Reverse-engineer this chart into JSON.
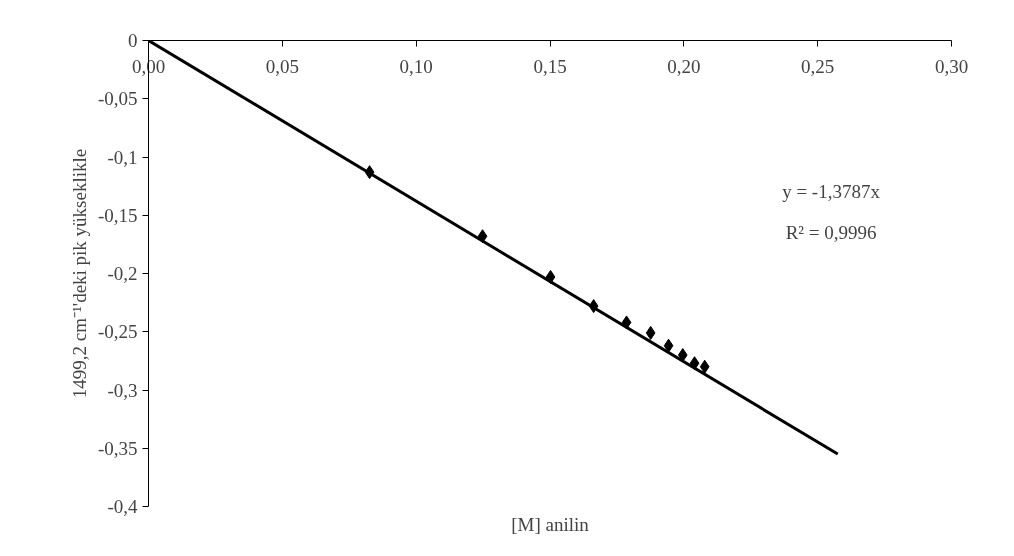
{
  "chart_data": {
    "type": "scatter",
    "xlabel": "[M] anilin",
    "ylabel": "1499,2 cm⁻¹'deki pik yükseklikle",
    "series": [
      {
        "color": "#000000",
        "marker": "diamond",
        "x": [
          0.0826,
          0.1248,
          0.1502,
          0.1663,
          0.1786,
          0.1876,
          0.1943,
          0.1996,
          0.204,
          0.2078
        ],
        "values": [
          -0.113,
          -0.168,
          -0.203,
          -0.228,
          -0.242,
          -0.251,
          -0.262,
          -0.27,
          -0.277,
          -0.28
        ]
      },
      {
        "type": "line",
        "color": "#000000",
        "marker": "none",
        "x": [
          0,
          0.2575
        ],
        "values": [
          0,
          -0.355
        ]
      }
    ],
    "xlim": [
      0,
      0.3
    ],
    "ylim": [
      -0.4,
      0
    ],
    "xticks": [
      {
        "value": 0,
        "label": "0,00"
      },
      {
        "value": 0.05,
        "label": "0,05"
      },
      {
        "value": 0.1,
        "label": "0,10"
      },
      {
        "value": 0.15,
        "label": "0,15"
      },
      {
        "value": 0.2,
        "label": "0,20"
      },
      {
        "value": 0.25,
        "label": "0,25"
      },
      {
        "value": 0.3,
        "label": "0,30"
      }
    ],
    "yticks": [
      0,
      {
        "value": -0.05,
        "label": "-0,05"
      },
      {
        "value": -0.1,
        "label": "-0,1"
      },
      {
        "value": -0.15,
        "label": "-0,15"
      },
      {
        "value": -0.2,
        "label": "-0,2"
      },
      {
        "value": -0.25,
        "label": "-0,25"
      },
      {
        "value": -0.3,
        "label": "-0,3"
      },
      {
        "value": -0.35,
        "label": "-0,35"
      },
      {
        "value": -0.4,
        "label": "-0,4"
      }
    ],
    "annotations": [
      "y = -1,3787x",
      "R² = 0,9996"
    ],
    "grid": false
  }
}
